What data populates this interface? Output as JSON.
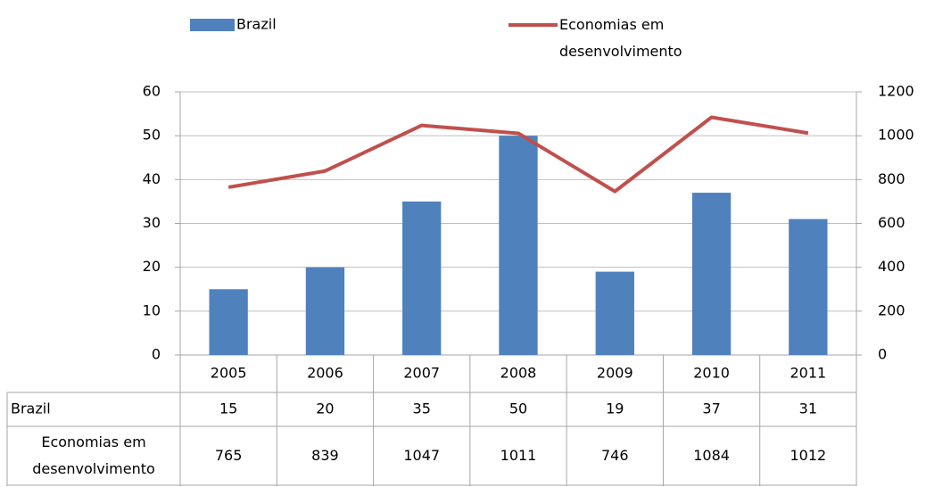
{
  "chart_data": {
    "type": "bar",
    "categories": [
      "2005",
      "2006",
      "2007",
      "2008",
      "2009",
      "2010",
      "2011"
    ],
    "series": [
      {
        "name": "Brazil",
        "type": "bar",
        "color": "#4f81bd",
        "values": [
          15,
          20,
          35,
          50,
          19,
          37,
          31
        ]
      },
      {
        "name": "Economias em desenvolvimento",
        "type": "line",
        "axis": "y2",
        "color": "#c0504d",
        "values": [
          765,
          839,
          1047,
          1011,
          746,
          1084,
          1012
        ]
      }
    ],
    "ylim": [
      0,
      60
    ],
    "yticks": [
      0,
      10,
      20,
      30,
      40,
      50,
      60
    ],
    "y2lim": [
      0,
      1200
    ],
    "y2ticks": [
      0,
      200,
      400,
      600,
      800,
      1000,
      1200
    ],
    "grid": true,
    "legend": "top",
    "data_table": true
  }
}
